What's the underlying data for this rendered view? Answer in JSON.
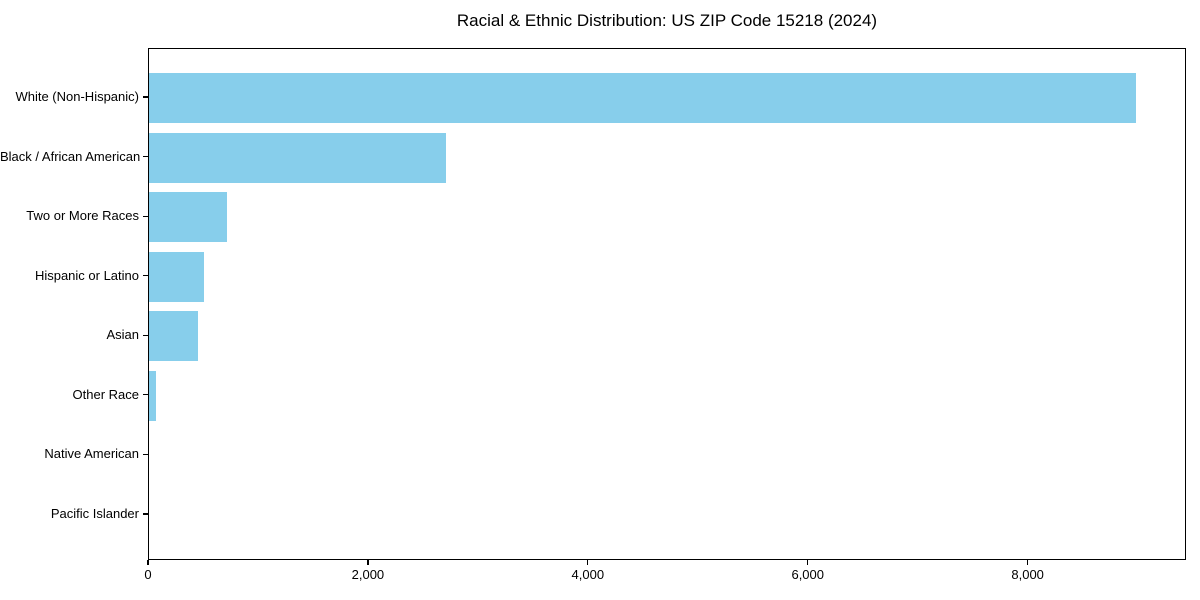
{
  "title": "Racial & Ethnic Distribution: US ZIP Code 15218 (2024)",
  "chart_data": {
    "type": "bar",
    "orientation": "horizontal",
    "title": "Racial & Ethnic Distribution: US ZIP Code 15218 (2024)",
    "xlabel": "",
    "ylabel": "",
    "categories": [
      "White (Non-Hispanic)",
      "Black / African American",
      "Two or More Races",
      "Hispanic or Latino",
      "Asian",
      "Other Race",
      "Native American",
      "Pacific Islander"
    ],
    "values": [
      8980,
      2700,
      710,
      500,
      445,
      65,
      0,
      0
    ],
    "xlim": [
      0,
      9440
    ],
    "x_ticks": [
      0,
      2000,
      4000,
      6000,
      8000
    ],
    "x_tick_labels": [
      "0",
      "2,000",
      "4,000",
      "6,000",
      "8,000"
    ],
    "bar_color": "#87CEEB",
    "grid": false,
    "legend": false
  }
}
